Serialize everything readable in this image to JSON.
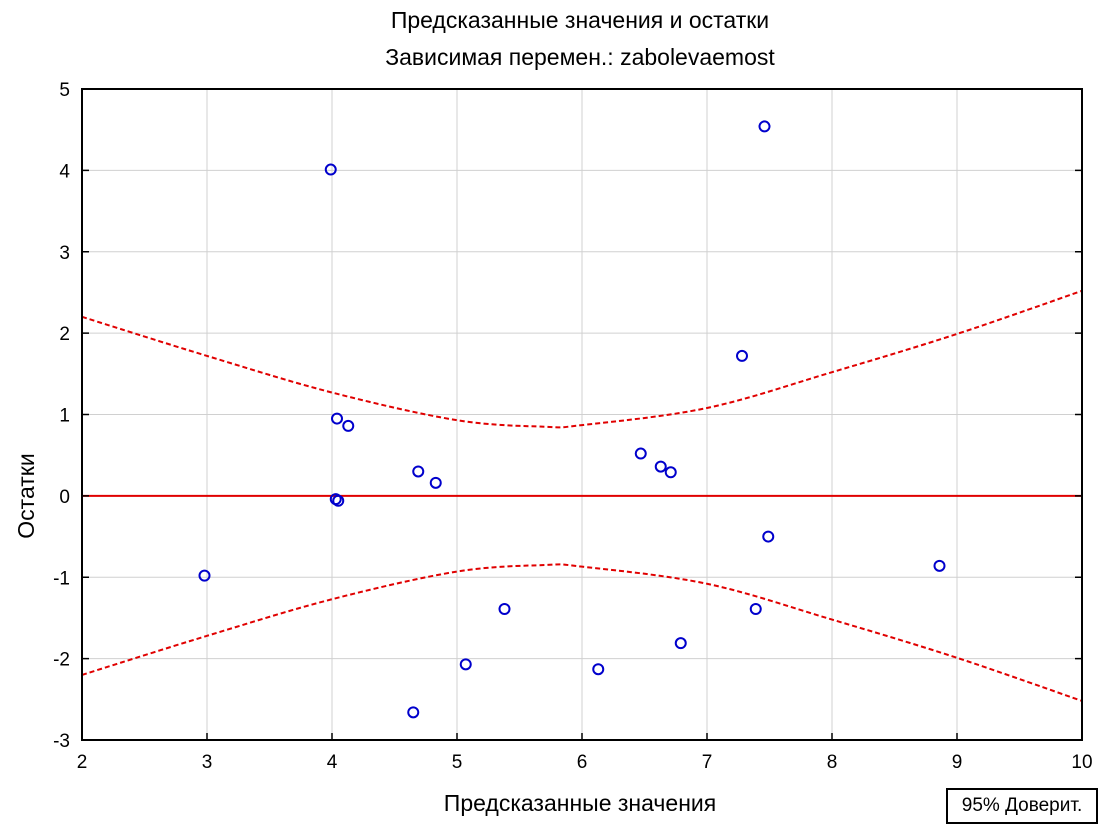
{
  "chart_data": {
    "type": "scatter",
    "title": "Предсказанные значения и остатки",
    "subtitle": "Зависимая перемен.: zabolevaemost",
    "xlabel": "Предсказанные значения",
    "ylabel": "Остатки",
    "xlim": [
      2,
      10
    ],
    "ylim": [
      -3,
      5
    ],
    "x_ticks": [
      "2",
      "3",
      "4",
      "5",
      "6",
      "7",
      "8",
      "9",
      "10"
    ],
    "y_ticks": [
      "5",
      "4",
      "3",
      "2",
      "1",
      "0",
      "-1",
      "-2",
      "-3"
    ],
    "grid": true,
    "legend": {
      "text": "95% Доверит.",
      "placement": "bottom-right"
    },
    "colors": {
      "points": "#0000cc",
      "fit_line": "#e00000",
      "confidence_band": "#e00000",
      "grid": "#d0d0d0"
    },
    "points": [
      {
        "x": 2.98,
        "y": -0.98
      },
      {
        "x": 3.99,
        "y": 4.01
      },
      {
        "x": 4.03,
        "y": -0.04
      },
      {
        "x": 4.05,
        "y": -0.06
      },
      {
        "x": 4.04,
        "y": 0.95
      },
      {
        "x": 4.13,
        "y": 0.86
      },
      {
        "x": 4.65,
        "y": -2.66
      },
      {
        "x": 4.69,
        "y": 0.3
      },
      {
        "x": 4.83,
        "y": 0.16
      },
      {
        "x": 5.07,
        "y": -2.07
      },
      {
        "x": 5.38,
        "y": -1.39
      },
      {
        "x": 6.13,
        "y": -2.13
      },
      {
        "x": 6.47,
        "y": 0.52
      },
      {
        "x": 6.63,
        "y": 0.36
      },
      {
        "x": 6.71,
        "y": 0.29
      },
      {
        "x": 6.79,
        "y": -1.81
      },
      {
        "x": 7.28,
        "y": 1.72
      },
      {
        "x": 7.39,
        "y": -1.39
      },
      {
        "x": 7.46,
        "y": 4.54
      },
      {
        "x": 7.49,
        "y": -0.5
      },
      {
        "x": 8.86,
        "y": -0.86
      }
    ],
    "fit_line": {
      "x": [
        2,
        10
      ],
      "y": [
        0,
        0
      ]
    },
    "confidence_band": {
      "x": [
        2,
        3,
        4,
        5,
        5.7,
        6,
        7,
        8,
        9,
        10
      ],
      "upper": [
        2.2,
        1.72,
        1.27,
        0.93,
        0.85,
        0.87,
        1.08,
        1.52,
        1.99,
        2.52
      ],
      "lower": [
        -2.2,
        -1.72,
        -1.27,
        -0.93,
        -0.85,
        -0.87,
        -1.08,
        -1.52,
        -1.99,
        -2.52
      ]
    }
  }
}
